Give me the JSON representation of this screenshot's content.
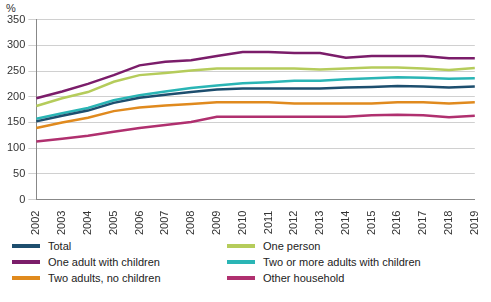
{
  "chart_data": {
    "type": "line",
    "y_label": "%",
    "categories": [
      "2002",
      "2003",
      "2004",
      "2005",
      "2006",
      "2007",
      "2008",
      "2009",
      "2010",
      "2011",
      "2012",
      "2013",
      "2014",
      "2015",
      "2016",
      "2017",
      "2018",
      "2019"
    ],
    "series": [
      {
        "name": "Total",
        "color": "#1d4e6e",
        "values": [
          152,
          163,
          173,
          188,
          198,
          204,
          209,
          214,
          216,
          216,
          216,
          216,
          218,
          219,
          221,
          220,
          218,
          220
        ]
      },
      {
        "name": "One person",
        "color": "#b5cc5b",
        "values": [
          182,
          197,
          209,
          229,
          242,
          246,
          251,
          255,
          255,
          255,
          255,
          253,
          255,
          257,
          257,
          255,
          252,
          256
        ]
      },
      {
        "name": "One adult with children",
        "color": "#7b1d6a",
        "values": [
          197,
          210,
          225,
          242,
          261,
          268,
          271,
          279,
          287,
          287,
          285,
          285,
          276,
          279,
          279,
          279,
          275,
          275
        ]
      },
      {
        "name": "Two or more adults with children",
        "color": "#2ab5b5",
        "values": [
          157,
          168,
          178,
          193,
          203,
          210,
          217,
          222,
          226,
          228,
          231,
          231,
          234,
          236,
          238,
          237,
          235,
          236
        ]
      },
      {
        "name": "Two adults, no children",
        "color": "#e08a1e",
        "values": [
          139,
          150,
          159,
          172,
          179,
          183,
          186,
          189,
          189,
          189,
          187,
          187,
          187,
          187,
          189,
          189,
          187,
          189
        ]
      },
      {
        "name": "Other household",
        "color": "#b0306f",
        "values": [
          113,
          118,
          124,
          132,
          139,
          145,
          151,
          161,
          161,
          161,
          161,
          161,
          161,
          164,
          165,
          164,
          160,
          163
        ]
      }
    ],
    "ylim": [
      0,
      350
    ],
    "yticks": [
      0,
      50,
      100,
      150,
      200,
      250,
      300,
      350
    ],
    "grid": true,
    "legend": "bottom"
  }
}
